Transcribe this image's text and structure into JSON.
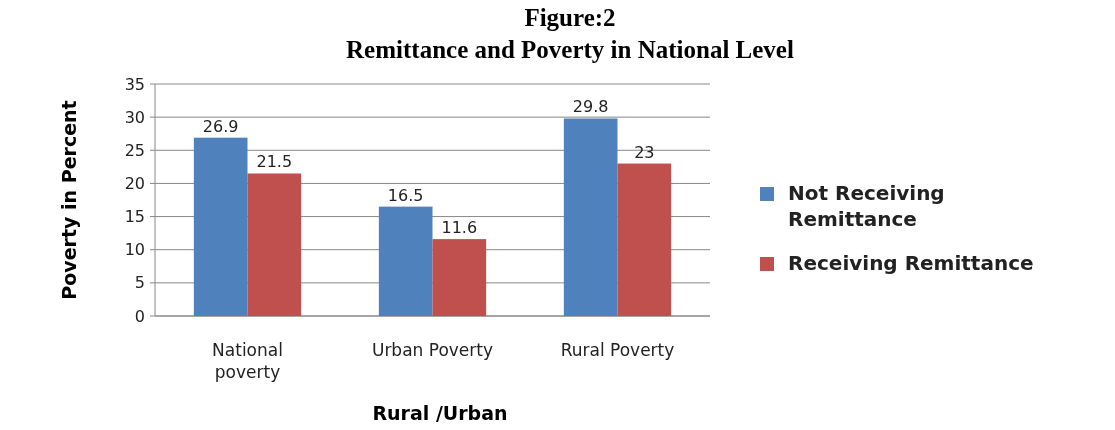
{
  "chart_data": {
    "type": "bar",
    "title": "Figure:2",
    "subtitle": "Remittance and Poverty in National Level",
    "xlabel": "Rural /Urban",
    "ylabel": "Poverty in Percent",
    "categories": [
      "National poverty",
      "Urban Poverty",
      "Rural Poverty"
    ],
    "series": [
      {
        "name": "Not Receiving Remittance",
        "color": "#4f81bd",
        "values": [
          26.9,
          16.5,
          29.8
        ]
      },
      {
        "name": "Receiving Remittance",
        "color": "#c0504d",
        "values": [
          21.5,
          11.6,
          23
        ]
      }
    ],
    "ylim": [
      0,
      35
    ],
    "yticks": [
      0,
      5,
      10,
      15,
      20,
      25,
      30,
      35
    ],
    "grid": "y",
    "legend": "right",
    "data_labels": true
  }
}
